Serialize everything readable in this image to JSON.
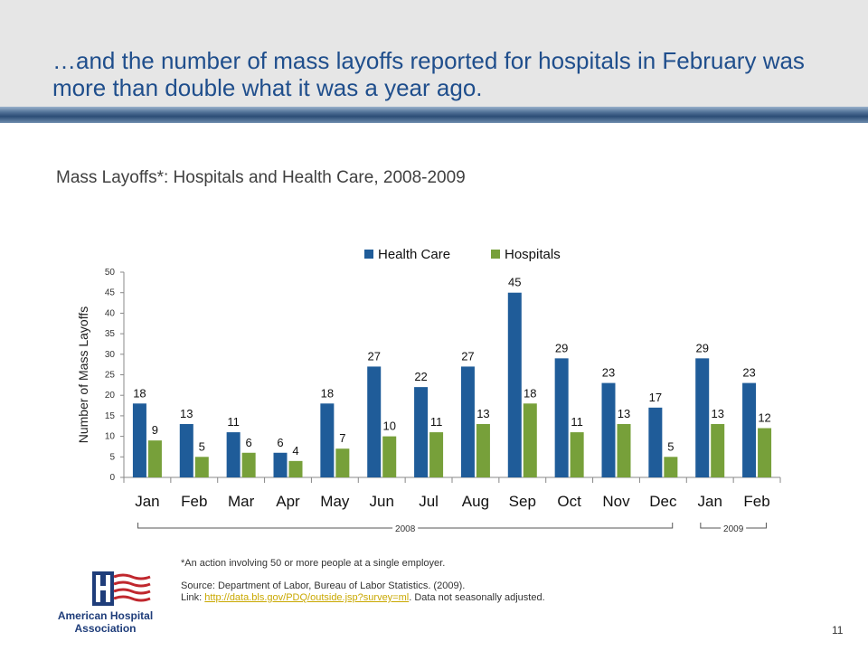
{
  "slide": {
    "title": "…and the number of mass layoffs reported for hospitals in February was more than double what it was a year ago.",
    "page_number": "11"
  },
  "colors": {
    "health_care": "#1f5c99",
    "hospitals": "#77a03a",
    "title": "#1f4e8c"
  },
  "chart_data": {
    "type": "bar",
    "title": "Mass Layoffs*: Hospitals and Health Care, 2008-2009",
    "ylabel": "Number of Mass Layoffs",
    "ylim": [
      0,
      50
    ],
    "yticks": [
      0,
      5,
      10,
      15,
      20,
      25,
      30,
      35,
      40,
      45,
      50
    ],
    "categories": [
      "Jan",
      "Feb",
      "Mar",
      "Apr",
      "May",
      "Jun",
      "Jul",
      "Aug",
      "Sep",
      "Oct",
      "Nov",
      "Dec",
      "Jan",
      "Feb"
    ],
    "series": [
      {
        "name": "Health Care",
        "values": [
          18,
          13,
          11,
          6,
          18,
          27,
          22,
          27,
          45,
          29,
          23,
          17,
          29,
          23
        ]
      },
      {
        "name": "Hospitals",
        "values": [
          9,
          5,
          6,
          4,
          7,
          10,
          11,
          13,
          18,
          11,
          13,
          5,
          13,
          12
        ]
      }
    ],
    "year_groups": [
      {
        "label": "2008",
        "first": 0,
        "last": 11
      },
      {
        "label": "2009",
        "first": 12,
        "last": 13
      }
    ],
    "legend": "top-center",
    "grid": false
  },
  "notes": {
    "footnote": "*An action involving 50 or more people at a single employer.",
    "source_line": "Source: Department of Labor, Bureau of Labor Statistics. (2009).",
    "link_prefix": "Link: ",
    "link_text": "http://data.bls.gov/PDQ/outside.jsp?survey=ml",
    "link_suffix": ". Data not seasonally adjusted."
  },
  "logo": {
    "line1": "American Hospital",
    "line2": "Association"
  }
}
